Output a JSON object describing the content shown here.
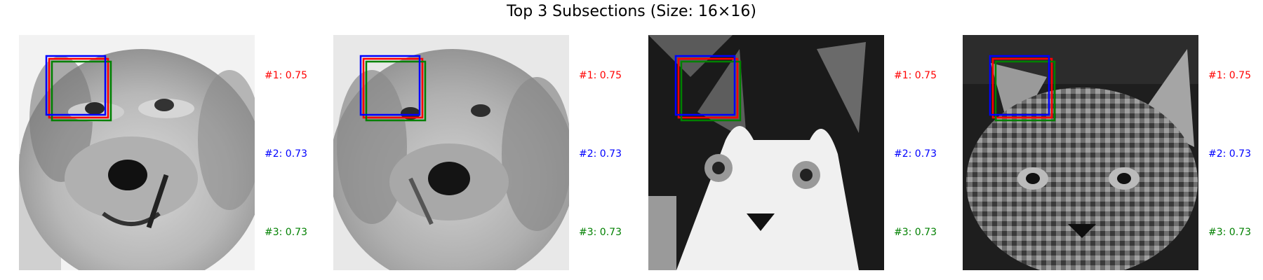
{
  "chart_data": {
    "type": "image-grid",
    "title": "Top 3 Subsections (Size: 16×16)",
    "colors": {
      "rank1": "#ff0000",
      "rank2": "#0000ff",
      "rank3": "#008000"
    },
    "panels": [
      {
        "image": "golden retriever face, grayscale, pixelated",
        "scores": [
          {
            "text": "#1: 0.75",
            "rank": 1,
            "value": 0.75
          },
          {
            "text": "#2: 0.73",
            "rank": 2,
            "value": 0.73
          },
          {
            "text": "#3: 0.73",
            "rank": 3,
            "value": 0.73
          }
        ]
      },
      {
        "image": "golden retriever face (blurred), grayscale, pixelated",
        "scores": [
          {
            "text": "#1: 0.75",
            "rank": 1,
            "value": 0.75
          },
          {
            "text": "#2: 0.73",
            "rank": 2,
            "value": 0.73
          },
          {
            "text": "#3: 0.73",
            "rank": 3,
            "value": 0.73
          }
        ]
      },
      {
        "image": "black and white kitten face, grayscale, pixelated",
        "scores": [
          {
            "text": "#1: 0.75",
            "rank": 1,
            "value": 0.75
          },
          {
            "text": "#2: 0.73",
            "rank": 2,
            "value": 0.73
          },
          {
            "text": "#3: 0.73",
            "rank": 3,
            "value": 0.73
          }
        ]
      },
      {
        "image": "tabby cat face, grayscale, pixelated",
        "scores": [
          {
            "text": "#1: 0.75",
            "rank": 1,
            "value": 0.75
          },
          {
            "text": "#2: 0.73",
            "rank": 2,
            "value": 0.73
          },
          {
            "text": "#3: 0.73",
            "rank": 3,
            "value": 0.73
          }
        ]
      }
    ]
  }
}
